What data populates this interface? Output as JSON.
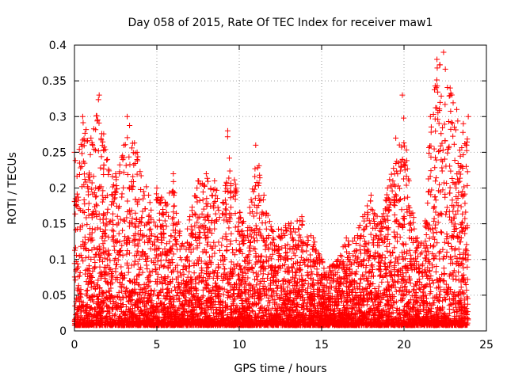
{
  "chart_data": {
    "type": "scatter",
    "title": "Day 058 of 2015, Rate Of TEC Index for receiver maw1",
    "xlabel": "GPS time / hours",
    "ylabel": "ROTI / TECUs",
    "xlim": [
      0,
      25
    ],
    "ylim": [
      0,
      0.4
    ],
    "x_ticks": [
      "0",
      "5",
      "10",
      "15",
      "20",
      "25"
    ],
    "y_ticks": [
      "0",
      "0.05",
      "0.1",
      "0.15",
      "0.2",
      "0.25",
      "0.3",
      "0.35",
      "0.4"
    ],
    "grid": true,
    "marker": "+",
    "color": "#ff0000",
    "envelope": [
      {
        "x": 0.0,
        "y": 0.25
      },
      {
        "x": 0.5,
        "y": 0.3
      },
      {
        "x": 1.0,
        "y": 0.27
      },
      {
        "x": 1.5,
        "y": 0.33
      },
      {
        "x": 2.0,
        "y": 0.24
      },
      {
        "x": 2.5,
        "y": 0.22
      },
      {
        "x": 3.0,
        "y": 0.26
      },
      {
        "x": 3.2,
        "y": 0.3
      },
      {
        "x": 3.8,
        "y": 0.25
      },
      {
        "x": 4.5,
        "y": 0.19
      },
      {
        "x": 5.0,
        "y": 0.2
      },
      {
        "x": 5.5,
        "y": 0.18
      },
      {
        "x": 6.0,
        "y": 0.22
      },
      {
        "x": 6.5,
        "y": 0.12
      },
      {
        "x": 7.0,
        "y": 0.16
      },
      {
        "x": 7.5,
        "y": 0.21
      },
      {
        "x": 8.0,
        "y": 0.22
      },
      {
        "x": 8.5,
        "y": 0.21
      },
      {
        "x": 9.0,
        "y": 0.18
      },
      {
        "x": 9.3,
        "y": 0.28
      },
      {
        "x": 9.8,
        "y": 0.2
      },
      {
        "x": 10.5,
        "y": 0.14
      },
      {
        "x": 11.0,
        "y": 0.26
      },
      {
        "x": 11.5,
        "y": 0.19
      },
      {
        "x": 12.0,
        "y": 0.14
      },
      {
        "x": 13.0,
        "y": 0.15
      },
      {
        "x": 13.8,
        "y": 0.16
      },
      {
        "x": 14.5,
        "y": 0.13
      },
      {
        "x": 15.0,
        "y": 0.1
      },
      {
        "x": 15.5,
        "y": 0.09
      },
      {
        "x": 16.0,
        "y": 0.1
      },
      {
        "x": 16.5,
        "y": 0.13
      },
      {
        "x": 17.0,
        "y": 0.13
      },
      {
        "x": 17.5,
        "y": 0.16
      },
      {
        "x": 18.0,
        "y": 0.19
      },
      {
        "x": 18.5,
        "y": 0.15
      },
      {
        "x": 19.0,
        "y": 0.2
      },
      {
        "x": 19.5,
        "y": 0.27
      },
      {
        "x": 19.9,
        "y": 0.33
      },
      {
        "x": 20.3,
        "y": 0.21
      },
      {
        "x": 20.8,
        "y": 0.13
      },
      {
        "x": 21.2,
        "y": 0.12
      },
      {
        "x": 21.6,
        "y": 0.3
      },
      {
        "x": 22.0,
        "y": 0.38
      },
      {
        "x": 22.4,
        "y": 0.39
      },
      {
        "x": 22.8,
        "y": 0.34
      },
      {
        "x": 23.2,
        "y": 0.31
      },
      {
        "x": 23.6,
        "y": 0.29
      },
      {
        "x": 23.9,
        "y": 0.3
      }
    ]
  }
}
